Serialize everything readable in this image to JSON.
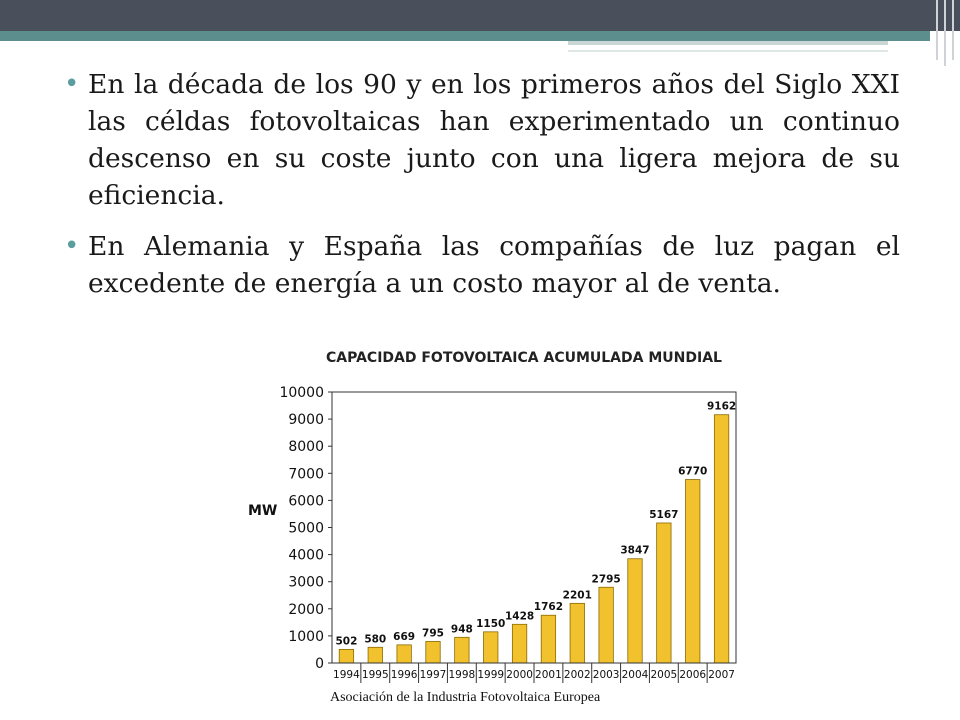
{
  "slide": {
    "bullets": [
      "En la década de los 90 y en los primeros años del Siglo XXI las céldas fotovoltaicas han experimentado un continuo descenso en su coste junto con una ligera mejora de su eficiencia.",
      "En Alemania y España las compañías de luz pagan el excedente de energía a un costo mayor al de venta."
    ],
    "source": "Asociación de la Industria Fotovoltaica Europea",
    "colors": {
      "topbar": "#4a4f5c",
      "accent": "#5b8e8c",
      "bar": "#f2c12e",
      "bar_stroke": "#8a6a00"
    }
  },
  "chart_data": {
    "type": "bar",
    "title": "CAPACIDAD FOTOVOLTAICA ACUMULADA MUNDIAL",
    "ylabel": "MW",
    "xlabel": "",
    "ylim": [
      0,
      10000
    ],
    "yticks": [
      0,
      1000,
      2000,
      3000,
      4000,
      5000,
      6000,
      7000,
      8000,
      9000,
      10000
    ],
    "categories": [
      "1994",
      "1995",
      "1996",
      "1997",
      "1998",
      "1999",
      "2000",
      "2001",
      "2002",
      "2003",
      "2004",
      "2005",
      "2006",
      "2007"
    ],
    "values": [
      502,
      580,
      669,
      795,
      948,
      1150,
      1428,
      1762,
      2201,
      2795,
      3847,
      5167,
      6770,
      9162
    ],
    "grid": false,
    "legend": "none"
  }
}
